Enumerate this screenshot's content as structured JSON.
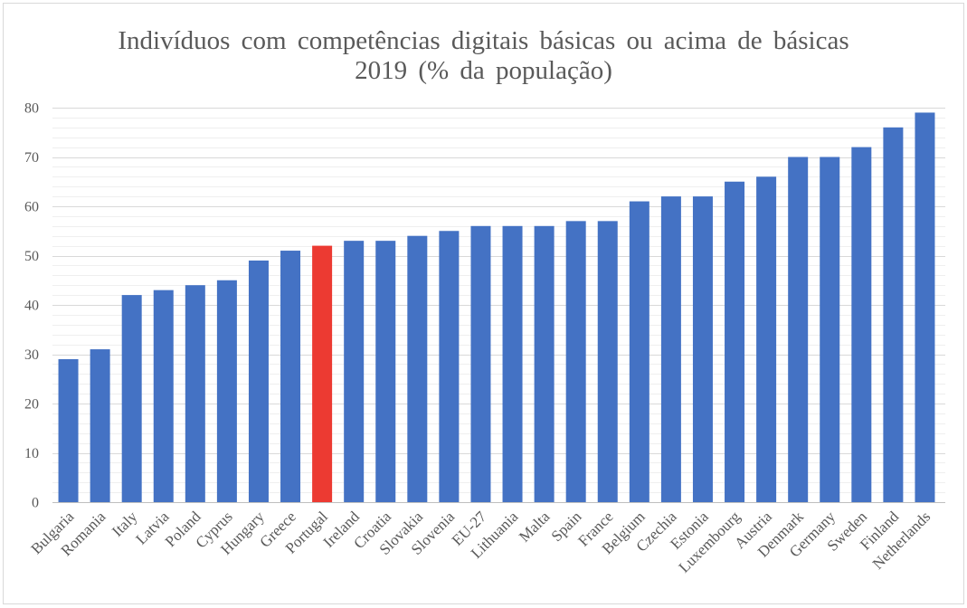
{
  "chart_data": {
    "type": "bar",
    "title": "Indivíduos com competências digitais básicas ou acima de básicas",
    "subtitle": "2019 (% da população)",
    "xlabel": "",
    "ylabel": "",
    "categories": [
      "Bulgaria",
      "Romania",
      "Italy",
      "Latvia",
      "Poland",
      "Cyprus",
      "Hungary",
      "Greece",
      "Portugal",
      "Ireland",
      "Croatia",
      "Slovakia",
      "Slovenia",
      "EU-27",
      "Lithuania",
      "Malta",
      "Spain",
      "France",
      "Belgium",
      "Czechia",
      "Estonia",
      "Luxembourg",
      "Austria",
      "Denmark",
      "Germany",
      "Sweden",
      "Finland",
      "Netherlands"
    ],
    "values": [
      29,
      31,
      42,
      43,
      44,
      45,
      49,
      51,
      52,
      53,
      53,
      54,
      55,
      56,
      56,
      56,
      57,
      57,
      61,
      62,
      62,
      65,
      66,
      70,
      70,
      72,
      76,
      79
    ],
    "bar_colors": [
      "#4472C4",
      "#4472C4",
      "#4472C4",
      "#4472C4",
      "#4472C4",
      "#4472C4",
      "#4472C4",
      "#4472C4",
      "#EC3A32",
      "#4472C4",
      "#4472C4",
      "#4472C4",
      "#4472C4",
      "#4472C4",
      "#4472C4",
      "#4472C4",
      "#4472C4",
      "#4472C4",
      "#4472C4",
      "#4472C4",
      "#4472C4",
      "#4472C4",
      "#4472C4",
      "#4472C4",
      "#4472C4",
      "#4472C4",
      "#4472C4",
      "#4472C4"
    ],
    "ylim": [
      0,
      80
    ],
    "yticks": [
      0,
      10,
      20,
      30,
      40,
      50,
      60,
      70,
      80
    ],
    "grid": {
      "major": true,
      "minor": true
    },
    "legend": "none"
  }
}
